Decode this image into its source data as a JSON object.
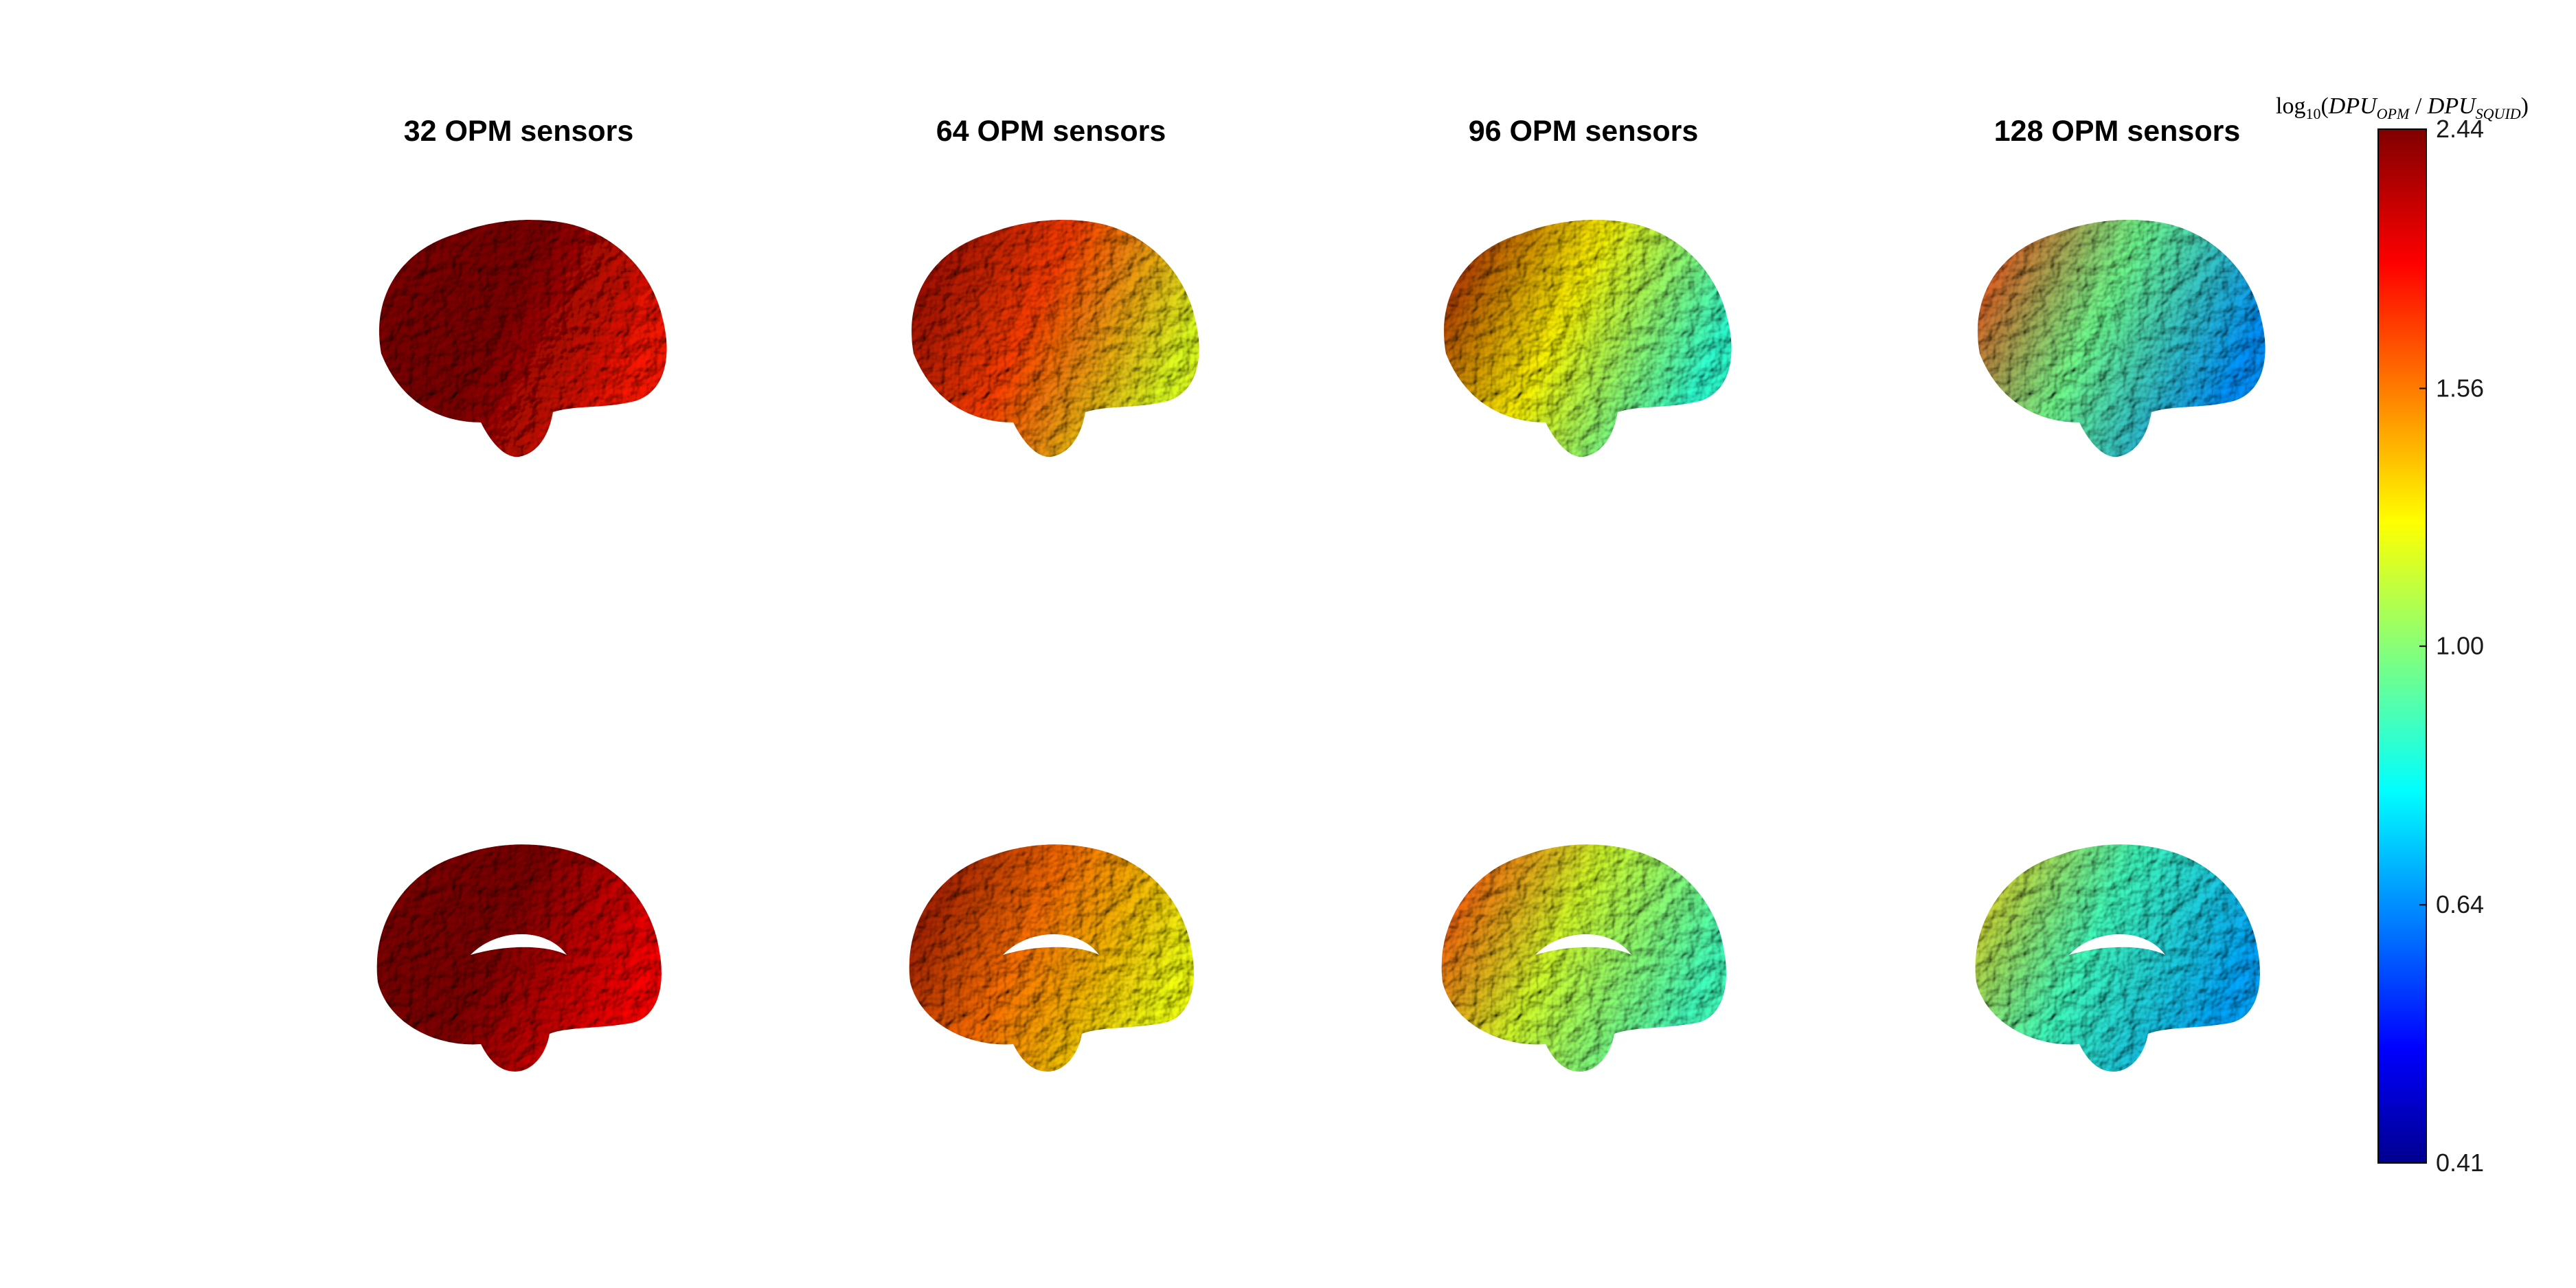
{
  "columns": [
    {
      "title": "32 OPM sensors",
      "mean_level": 2.3
    },
    {
      "title": "64 OPM sensors",
      "mean_level": 1.45
    },
    {
      "title": "96 OPM sensors",
      "mean_level": 1.05
    },
    {
      "title": "128 OPM sensors",
      "mean_level": 0.8
    }
  ],
  "rows": [
    {
      "view": "lateral"
    },
    {
      "view": "medial"
    }
  ],
  "colorbar": {
    "title_func": "log",
    "title_sub": "10",
    "title_num": "DPU",
    "title_num_sub": "OPM",
    "title_sep": " / ",
    "title_den": "DPU",
    "title_den_sub": "SQUID",
    "min": 0.41,
    "max": 2.44,
    "ticks": [
      "2.44",
      "1.56",
      "1.00",
      "0.64",
      "0.41"
    ],
    "colormap": "jet",
    "colormap_stops": [
      "#00008f",
      "#0000ff",
      "#00ffff",
      "#ffff00",
      "#ff0000",
      "#800000"
    ]
  }
}
